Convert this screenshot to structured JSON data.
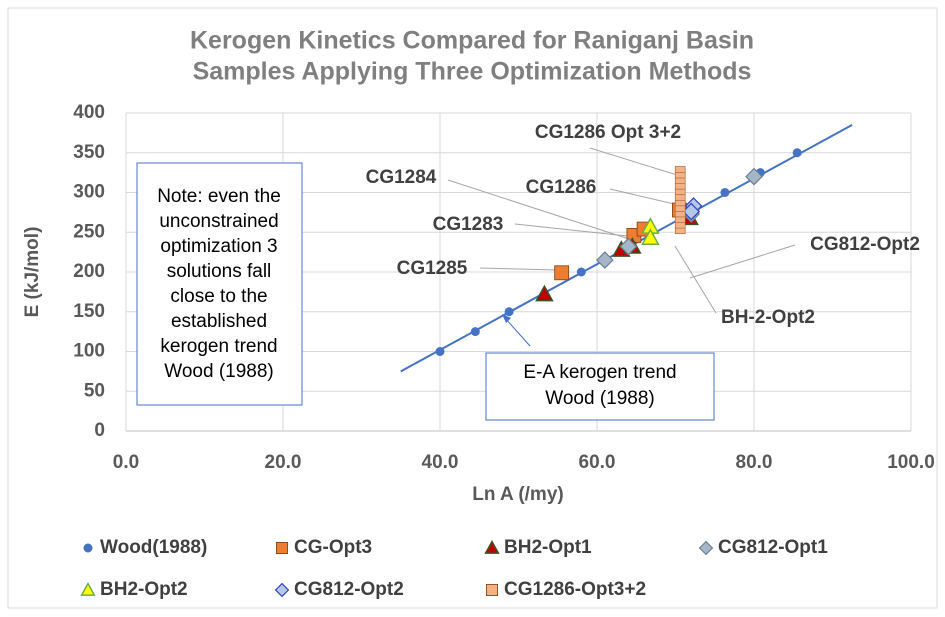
{
  "chart_data": {
    "type": "scatter",
    "title": [
      "Kerogen Kinetics Compared for Raniganj Basin",
      "Samples Applying Three Optimization Methods"
    ],
    "xlabel": "Ln A (/my)",
    "ylabel": "E (kJ/mol)",
    "xlim": [
      0,
      100
    ],
    "ylim": [
      0,
      400
    ],
    "xticks": [
      {
        "value": 0,
        "label": "0.0"
      },
      {
        "value": 20,
        "label": "20.0"
      },
      {
        "value": 40,
        "label": "40.0"
      },
      {
        "value": 60,
        "label": "60.0"
      },
      {
        "value": 80,
        "label": "80.0"
      },
      {
        "value": 100,
        "label": "100.0"
      }
    ],
    "yticks": [
      0,
      50,
      100,
      150,
      200,
      250,
      300,
      350,
      400
    ],
    "grid": true,
    "trend_line": {
      "color": "#4472c4",
      "x": [
        35,
        92.5
      ],
      "values": [
        75,
        385
      ]
    },
    "series": [
      {
        "name": "Wood(1988)",
        "marker": "circle",
        "color": "#4472c4",
        "x": [
          40,
          44.5,
          48.8,
          58,
          76.3,
          80.8,
          85.5
        ],
        "values": [
          100,
          125,
          150,
          200,
          300,
          325,
          350
        ]
      },
      {
        "name": "CG-Opt3",
        "marker": "square",
        "color": "#ed7d31",
        "x": [
          55.5,
          64.7,
          66,
          70.5
        ],
        "values": [
          199,
          246,
          254,
          278
        ]
      },
      {
        "name": "BH2-Opt1",
        "marker": "triangle",
        "color": "#c00000",
        "x": [
          53.3,
          63.1,
          64.5,
          71.8
        ],
        "values": [
          172,
          228,
          232,
          268
        ]
      },
      {
        "name": "CG812-Opt1",
        "marker": "diamond",
        "color": "#a5b6c9",
        "x": [
          61,
          64,
          72,
          80
        ],
        "values": [
          215,
          232,
          273,
          320
        ]
      },
      {
        "name": "BH2-Opt2",
        "marker": "triangle",
        "color": "#ffff00",
        "x": [
          66.8,
          66.8
        ],
        "values": [
          257,
          243
        ]
      },
      {
        "name": "CG812-Opt2",
        "marker": "diamond",
        "color": "#b4c7e7",
        "x": [
          72.3,
          72
        ],
        "values": [
          283,
          276
        ]
      },
      {
        "name": "CG1286-Opt3+2",
        "marker": "smallsquare",
        "color": "#f4b183",
        "x": [
          70.6,
          70.6,
          70.6,
          70.6,
          70.6,
          70.6,
          70.6,
          70.6,
          70.6,
          70.6,
          70.6,
          70.6
        ],
        "values": [
          252,
          259,
          266,
          273,
          280,
          287,
          294,
          301,
          308,
          315,
          322,
          329
        ]
      }
    ],
    "annotations": [
      "CG1286 Opt 3+2",
      "CG1284",
      "CG1286",
      "CG1283",
      "CG1285",
      "CG812-Opt2",
      "BH-2-Opt2"
    ],
    "note": [
      "Note: even the",
      "unconstrained",
      "optimization 3",
      "solutions fall",
      "close to the",
      "established",
      "kerogen trend",
      "Wood (1988)"
    ],
    "trend_note": [
      "E-A kerogen trend",
      "Wood (1988)"
    ]
  }
}
